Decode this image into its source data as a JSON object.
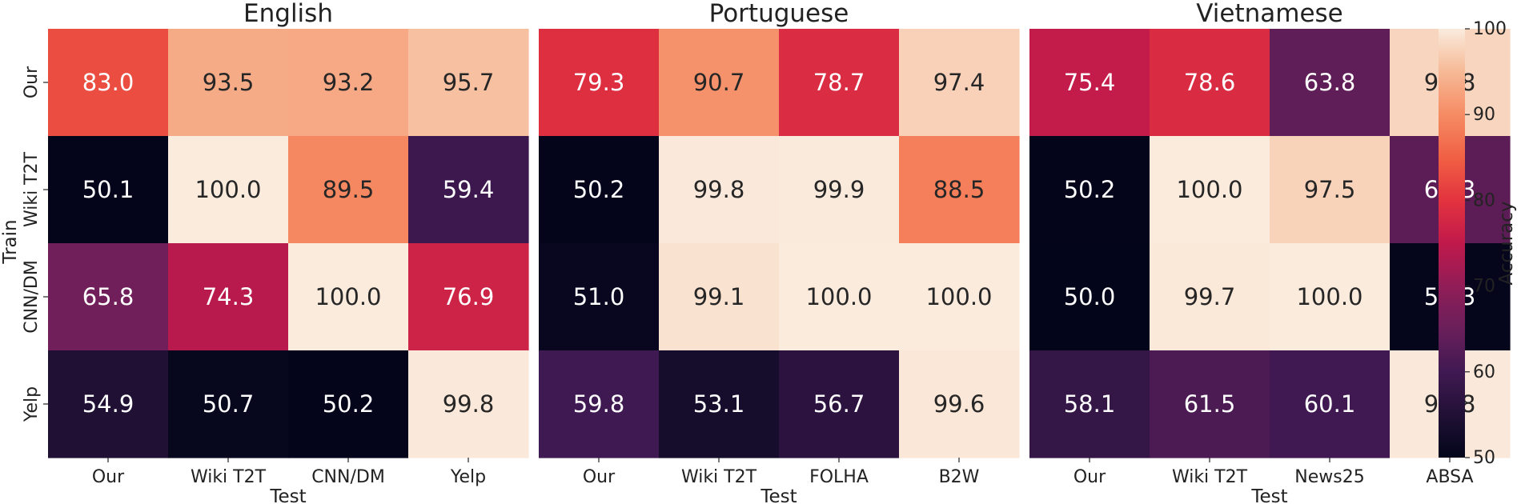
{
  "chart_data": {
    "type": "heatmap",
    "ylabel": "Train",
    "xlabel": "Test",
    "row_labels": [
      "Our",
      "Wiki T2T",
      "CNN/DM",
      "Yelp"
    ],
    "panels": [
      {
        "title": "English",
        "columns": [
          "Our",
          "Wiki T2T",
          "CNN/DM",
          "Yelp"
        ],
        "values": [
          [
            83.0,
            93.5,
            93.2,
            95.7
          ],
          [
            50.1,
            100.0,
            89.5,
            59.4
          ],
          [
            65.8,
            74.3,
            100.0,
            76.9
          ],
          [
            54.9,
            50.7,
            50.2,
            99.8
          ]
        ]
      },
      {
        "title": "Portuguese",
        "columns": [
          "Our",
          "Wiki T2T",
          "FOLHA",
          "B2W"
        ],
        "values": [
          [
            79.3,
            90.7,
            78.7,
            97.4
          ],
          [
            50.2,
            99.8,
            99.9,
            88.5
          ],
          [
            51.0,
            99.1,
            100.0,
            100.0
          ],
          [
            59.8,
            53.1,
            56.7,
            99.6
          ]
        ]
      },
      {
        "title": "Vietnamese",
        "columns": [
          "Our",
          "Wiki T2T",
          "News25",
          "ABSA"
        ],
        "values": [
          [
            75.4,
            78.6,
            63.8,
            97.8
          ],
          [
            50.2,
            100.0,
            97.5,
            63.3
          ],
          [
            50.0,
            99.7,
            100.0,
            50.3
          ],
          [
            58.1,
            61.5,
            60.1,
            99.8
          ]
        ]
      }
    ],
    "colorbar": {
      "label": "Accuracy",
      "range": [
        50,
        100
      ],
      "ticks": [
        50,
        60,
        70,
        80,
        90,
        100
      ],
      "colormap": "rocket"
    }
  }
}
